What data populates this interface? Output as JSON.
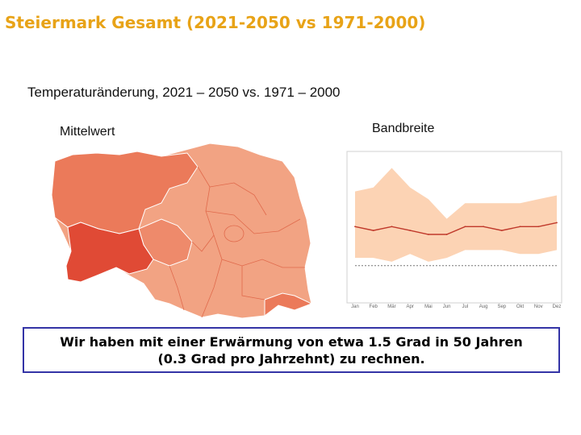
{
  "slide": {
    "title": "Steiermark Gesamt (2021-2050 vs 1971-2000)",
    "subtitle": "Temperaturänderung, 2021 – 2050 vs. 1971 – 2000",
    "map_label": "Mittelwert",
    "range_label": "Bandbreite",
    "conclusion_line1": "Wir haben mit einer Erwärmung von etwa 1.5 Grad in 50 Jahren",
    "conclusion_line2": "(0.3 Grad pro Jahrzehnt) zu rechnen."
  },
  "colors": {
    "title": "#e8a317",
    "map_light": "#f2a383",
    "map_medium": "#eb7a5a",
    "map_dark": "#e04a35",
    "band_fill": "#fcd3b4",
    "mean_line": "#c0392b",
    "baseline": "#777777",
    "box_border": "#3333a6"
  },
  "chart_data": {
    "type": "area",
    "categories": [
      "Jan",
      "Feb",
      "Mär",
      "Apr",
      "Mai",
      "Jun",
      "Jul",
      "Aug",
      "Sep",
      "Okt",
      "Nov",
      "Dez"
    ],
    "series": [
      {
        "values": [
          1.5,
          1.4,
          1.5,
          1.4,
          1.3,
          1.3,
          1.5,
          1.5,
          1.4,
          1.5,
          1.5,
          1.6
        ]
      }
    ],
    "band_upper": [
      2.4,
      2.5,
      3.0,
      2.5,
      2.2,
      1.7,
      2.1,
      2.1,
      2.1,
      2.1,
      2.2,
      2.3
    ],
    "band_lower": [
      0.7,
      0.7,
      0.6,
      0.8,
      0.6,
      0.7,
      0.9,
      0.9,
      0.9,
      0.8,
      0.8,
      0.9
    ],
    "baseline": 0.5,
    "ylim": [
      0,
      3.3
    ],
    "grid": false
  }
}
